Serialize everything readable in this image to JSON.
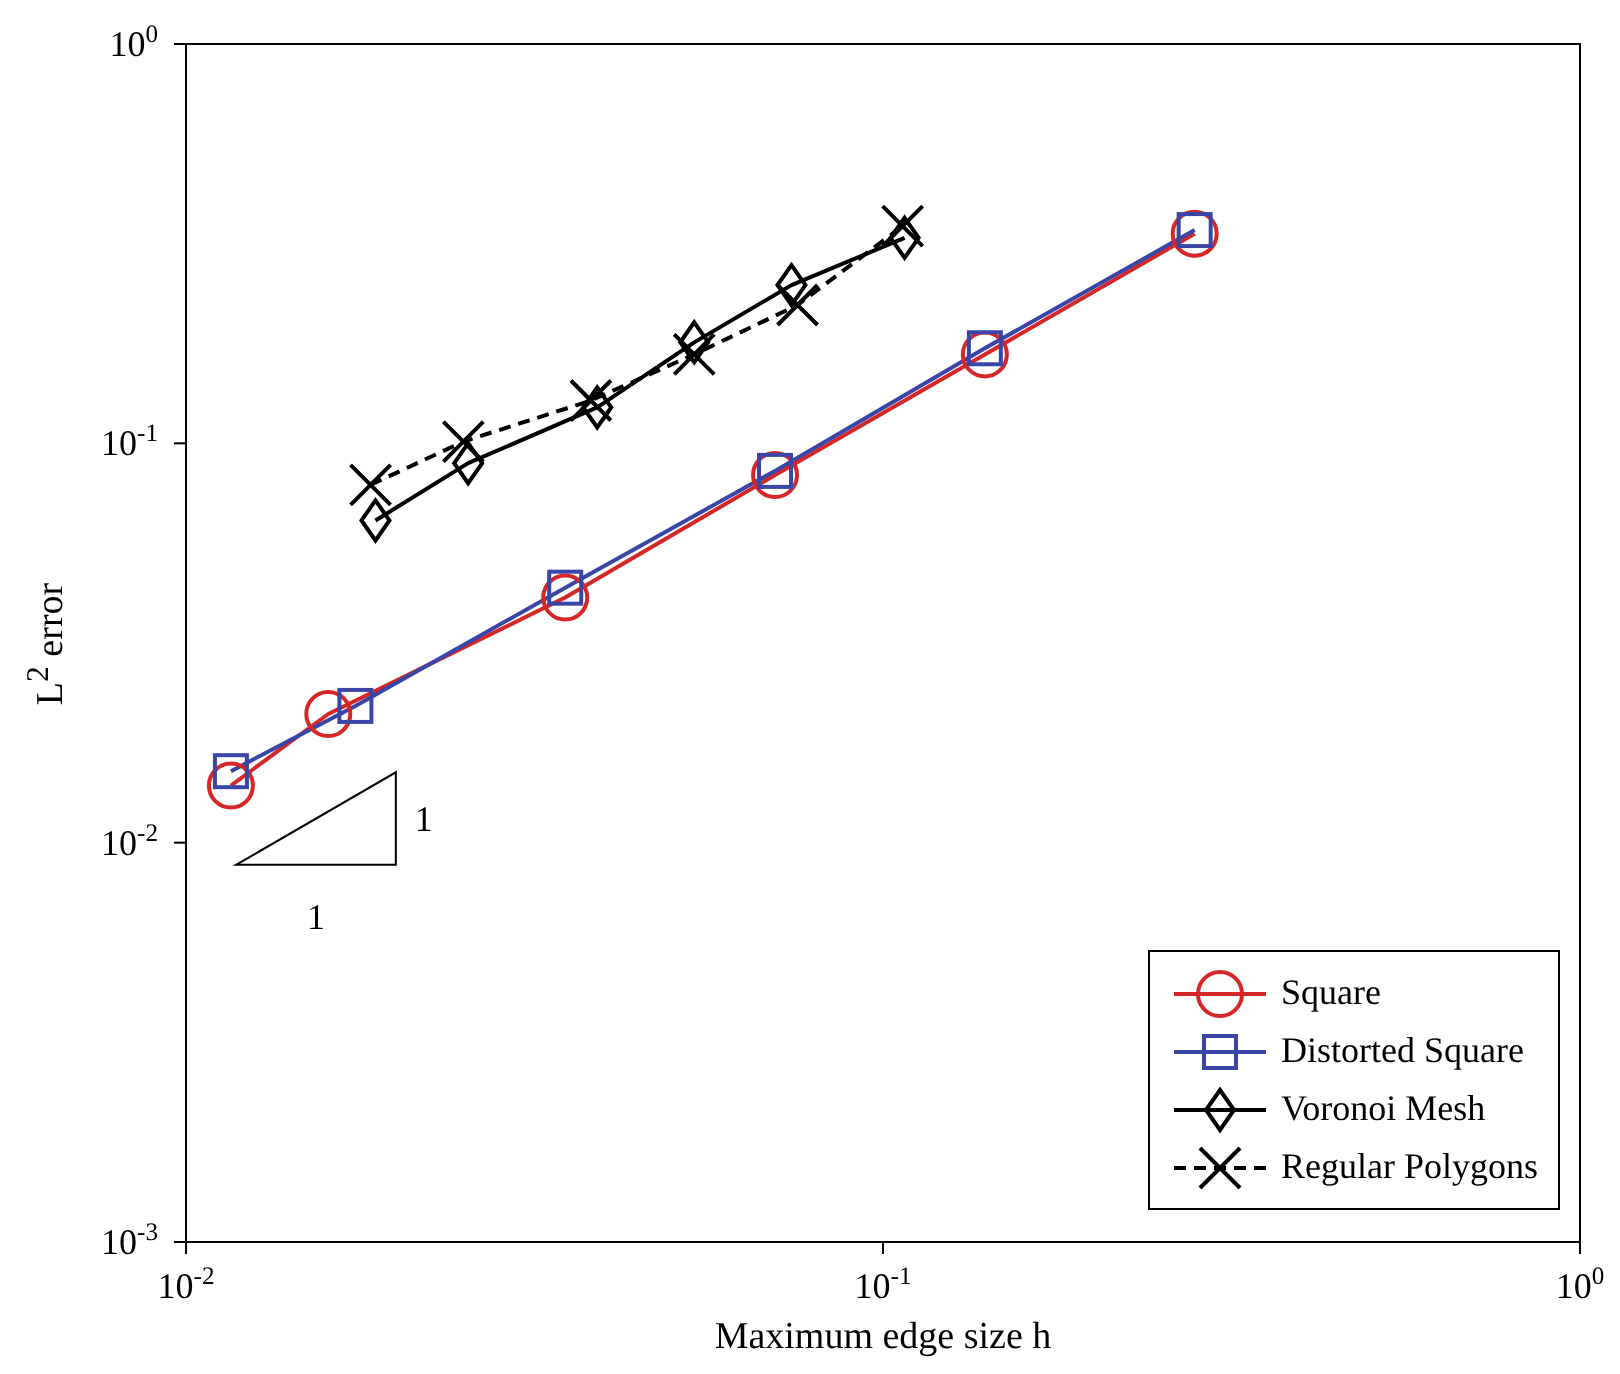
{
  "chart_data": {
    "type": "line",
    "xlabel": "Maximum edge size h",
    "ylabel": "L$^{2}$ error",
    "log": "xy",
    "xlim": [
      0.01,
      1
    ],
    "ylim": [
      0.001,
      1
    ],
    "xticks": [
      {
        "value": 0.01,
        "label": "10$^{-2}$"
      },
      {
        "value": 0.1,
        "label": "10$^{-1}$"
      },
      {
        "value": 1,
        "label": "10$^{0}$"
      }
    ],
    "yticks": [
      {
        "value": 0.001,
        "label": "10$^{-3}$"
      },
      {
        "value": 0.01,
        "label": "10$^{-2}$"
      },
      {
        "value": 0.1,
        "label": "10$^{-1}$"
      },
      {
        "value": 1,
        "label": "10$^{0}$"
      }
    ],
    "grid": false,
    "legend": "bottom right",
    "annotations": [
      "1",
      "1"
    ],
    "series": [
      {
        "name": "Square",
        "color": "#d62728",
        "marker": "circle",
        "line_style": "solid",
        "x": [
          0.0116,
          0.016,
          0.035,
          0.07,
          0.14,
          0.28
        ],
        "values": [
          0.0139,
          0.021,
          0.0411,
          0.0833,
          0.167,
          0.335
        ]
      },
      {
        "name": "Distorted Square",
        "color": "#3a45a8",
        "marker": "square",
        "line_style": "solid",
        "x": [
          0.0116,
          0.0175,
          0.035,
          0.07,
          0.14,
          0.28
        ],
        "values": [
          0.0151,
          0.022,
          0.0435,
          0.0853,
          0.173,
          0.342
        ]
      },
      {
        "name": "Voronoi Mesh",
        "color": "#000000",
        "marker": "diamond",
        "line_style": "solid",
        "x": [
          0.0187,
          0.0254,
          0.0389,
          0.0536,
          0.0739,
          0.1074
        ],
        "values": [
          0.0641,
          0.0892,
          0.123,
          0.179,
          0.249,
          0.327
        ]
      },
      {
        "name": "Regular Polygons",
        "color": "#000000",
        "marker": "cross",
        "line_style": "dashed",
        "x": [
          0.0184,
          0.025,
          0.0381,
          0.0536,
          0.0754,
          0.1067
        ],
        "values": [
          0.0787,
          0.101,
          0.128,
          0.167,
          0.222,
          0.35
        ]
      }
    ]
  }
}
